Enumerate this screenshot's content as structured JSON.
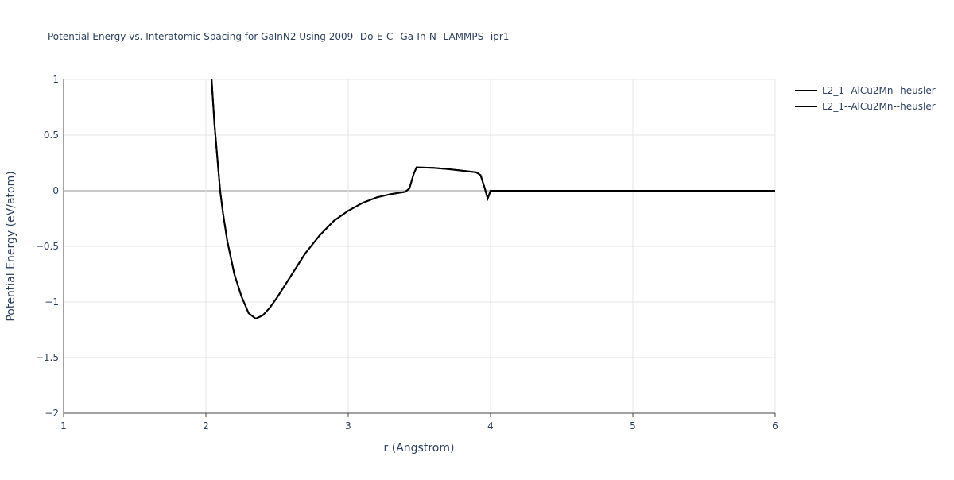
{
  "chart_data": {
    "type": "line",
    "title": "Potential Energy vs. Interatomic Spacing for GaInN2 Using 2009--Do-E-C--Ga-In-N--LAMMPS--ipr1",
    "x_label": "r (Angstrom)",
    "y_label": "Potential Energy (eV/atom)",
    "xlim": [
      1,
      6
    ],
    "ylim": [
      -2,
      1
    ],
    "xticks": [
      1,
      2,
      3,
      4,
      5,
      6
    ],
    "yticks": [
      {
        "value": -2,
        "label": "−2"
      },
      {
        "value": -1.5,
        "label": "−1.5"
      },
      {
        "value": -1,
        "label": "−1"
      },
      {
        "value": -0.5,
        "label": "−0.5"
      },
      0,
      0.5,
      1
    ],
    "grid": true,
    "x": [
      2.04,
      2.06,
      2.1,
      2.12,
      2.15,
      2.2,
      2.25,
      2.3,
      2.35,
      2.4,
      2.45,
      2.5,
      2.6,
      2.7,
      2.8,
      2.9,
      3.0,
      3.1,
      3.2,
      3.3,
      3.4,
      3.43,
      3.46,
      3.48,
      3.6,
      3.7,
      3.8,
      3.9,
      3.93,
      3.96,
      3.98,
      4.0,
      4.5,
      5.0,
      5.5,
      6.0
    ],
    "series": [
      {
        "name": "L2_1--AlCu2Mn--heusler",
        "color": "#000000",
        "values": [
          1.0,
          0.6,
          0.0,
          -0.2,
          -0.45,
          -0.75,
          -0.95,
          -1.1,
          -1.15,
          -1.12,
          -1.05,
          -0.96,
          -0.76,
          -0.56,
          -0.4,
          -0.27,
          -0.18,
          -0.11,
          -0.06,
          -0.03,
          -0.01,
          0.02,
          0.15,
          0.21,
          0.205,
          0.195,
          0.18,
          0.165,
          0.14,
          0.02,
          -0.07,
          0.0,
          0.0,
          0.0,
          0.0,
          0.0
        ]
      },
      {
        "name": "L2_1--AlCu2Mn--heusler",
        "color": "#000000",
        "values": [
          1.0,
          0.6,
          0.0,
          -0.2,
          -0.45,
          -0.75,
          -0.95,
          -1.1,
          -1.15,
          -1.12,
          -1.05,
          -0.96,
          -0.76,
          -0.56,
          -0.4,
          -0.27,
          -0.18,
          -0.11,
          -0.06,
          -0.03,
          -0.01,
          0.02,
          0.15,
          0.21,
          0.205,
          0.195,
          0.18,
          0.165,
          0.14,
          0.02,
          -0.07,
          0.0,
          0.0,
          0.0,
          0.0,
          0.0
        ]
      }
    ]
  }
}
